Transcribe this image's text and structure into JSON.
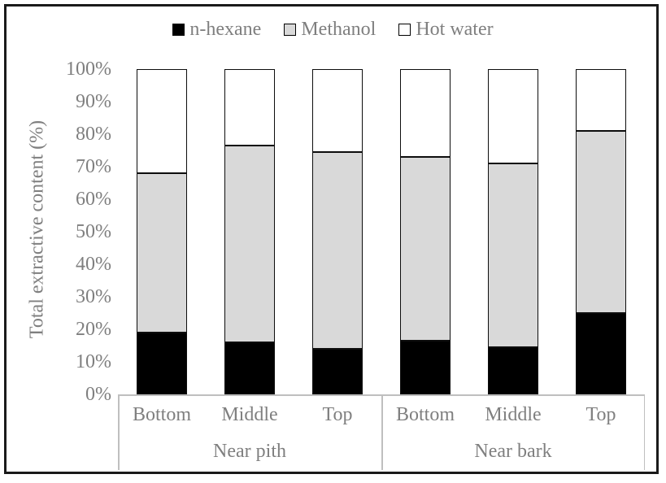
{
  "chart_data": {
    "type": "bar",
    "variant": "100%-stacked-column",
    "title": "",
    "ylabel": "Total extractive content (%)",
    "xlabel": "",
    "ylim": [
      0,
      100
    ],
    "grid": false,
    "legend_position": "top",
    "y_tick_labels": [
      "0%",
      "10%",
      "20%",
      "30%",
      "40%",
      "50%",
      "60%",
      "70%",
      "80%",
      "90%",
      "100%"
    ],
    "categories": [
      "Bottom",
      "Middle",
      "Top",
      "Bottom",
      "Middle",
      "Top"
    ],
    "group_labels": [
      "Near pith",
      "Near bark"
    ],
    "series": [
      {
        "name": "n-hexane",
        "color": "#000000",
        "values": [
          19,
          16,
          14,
          16.5,
          14.5,
          25
        ]
      },
      {
        "name": "Methanol",
        "color": "#d9d9d9",
        "values": [
          49,
          60.5,
          60.5,
          56.5,
          56.5,
          56
        ]
      },
      {
        "name": "Hot water",
        "color": "#ffffff",
        "values": [
          32,
          23.5,
          25.5,
          27,
          29,
          19
        ]
      }
    ],
    "colors": {
      "text": "#7f7f7f",
      "bar_border": "#0d0d0d",
      "axis_line": "#bfbfbf",
      "outer_frame": "#1a1a1a",
      "background": "#ffffff"
    }
  }
}
